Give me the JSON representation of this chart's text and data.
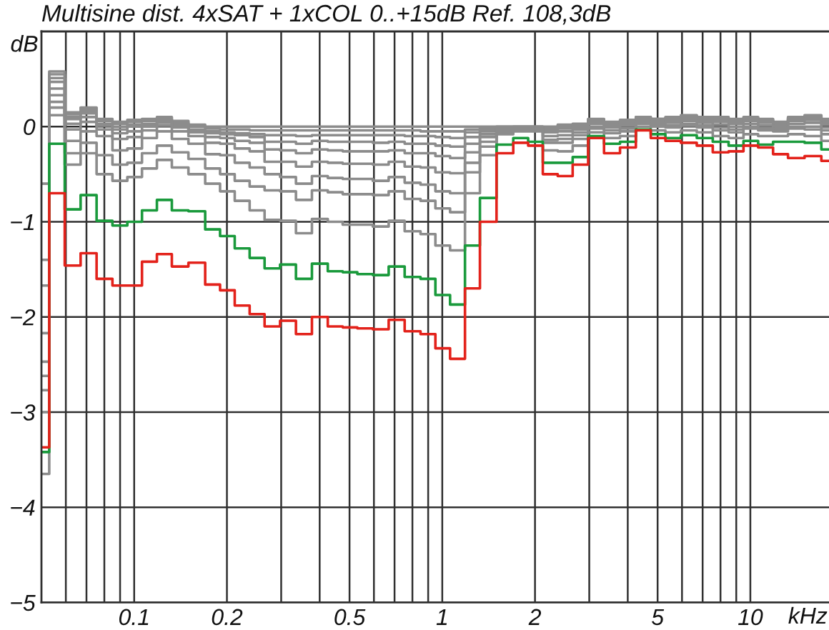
{
  "chart_data": {
    "type": "step",
    "title": "Multisine dist. 4xSAT + 1xCOL 0..+15dB Ref. 108,3dB",
    "xlabel": "kHz",
    "ylabel": "dB",
    "log": "x",
    "grid": true,
    "xlim": [
      0.05,
      18
    ],
    "ylim": [
      -5,
      1
    ],
    "xticks": [
      {
        "value": 0.06,
        "label": null
      },
      {
        "value": 0.07,
        "label": null
      },
      {
        "value": 0.08,
        "label": null
      },
      {
        "value": 0.09,
        "label": null
      },
      0.1,
      0.2,
      {
        "value": 0.3,
        "label": null
      },
      {
        "value": 0.4,
        "label": null
      },
      0.5,
      {
        "value": 0.6,
        "label": null
      },
      {
        "value": 0.7,
        "label": null
      },
      {
        "value": 0.8,
        "label": null
      },
      {
        "value": 0.9,
        "label": null
      },
      1,
      2,
      {
        "value": 3,
        "label": null
      },
      {
        "value": 4,
        "label": null
      },
      5,
      {
        "value": 6,
        "label": null
      },
      {
        "value": 7,
        "label": null
      },
      {
        "value": 8,
        "label": null
      },
      {
        "value": 9,
        "label": null
      },
      10
    ],
    "yticks": [
      {
        "value": -5,
        "label": "−5"
      },
      {
        "value": -4,
        "label": "−4"
      },
      {
        "value": -3,
        "label": "−3"
      },
      {
        "value": -2,
        "label": "−2"
      },
      {
        "value": -1,
        "label": "−1"
      },
      0
    ],
    "x": [
      0.05,
      0.056,
      0.063,
      0.071,
      0.08,
      0.09,
      0.1,
      0.112,
      0.125,
      0.14,
      0.16,
      0.18,
      0.2,
      0.224,
      0.25,
      0.28,
      0.315,
      0.355,
      0.4,
      0.45,
      0.5,
      0.56,
      0.63,
      0.71,
      0.8,
      0.9,
      1,
      1.12,
      1.25,
      1.4,
      1.6,
      1.8,
      2,
      2.24,
      2.5,
      2.8,
      3.15,
      3.55,
      4,
      4.5,
      5,
      5.6,
      6.3,
      7.1,
      8,
      9,
      10,
      11.2,
      12.5,
      14,
      16,
      18
    ],
    "series": [
      {
        "color": "#8c8c8c",
        "values": [
          -0.6,
          0.58,
          0.15,
          0.2,
          0.08,
          0.05,
          0.07,
          0.08,
          0.1,
          0.06,
          0.02,
          0,
          0,
          0,
          0,
          0,
          0,
          0,
          0,
          0,
          0,
          0,
          0,
          0,
          0,
          0,
          0,
          0,
          0,
          0,
          0,
          0,
          0,
          0,
          0.02,
          0.03,
          0.08,
          0.05,
          0.07,
          0.1,
          0.08,
          0.1,
          0.12,
          0.1,
          0.1,
          0.08,
          0.1,
          0.08,
          0.05,
          0.1,
          0.12,
          0.08
        ]
      },
      {
        "color": "#8c8c8c",
        "values": [
          -1.4,
          0.55,
          0.13,
          0.18,
          0.06,
          0.03,
          0.05,
          0.06,
          0.08,
          0.04,
          0,
          -0.02,
          -0.03,
          -0.03,
          -0.04,
          -0.04,
          -0.04,
          -0.04,
          -0.04,
          -0.04,
          -0.04,
          -0.04,
          -0.04,
          -0.04,
          -0.04,
          -0.05,
          -0.05,
          -0.05,
          -0.03,
          -0.01,
          0,
          0,
          0,
          -0.01,
          0.01,
          0.02,
          0.07,
          0.04,
          0.06,
          0.1,
          0.08,
          0.09,
          0.11,
          0.09,
          0.09,
          0.07,
          0.09,
          0.07,
          0.04,
          0.09,
          0.11,
          0.07
        ]
      },
      {
        "color": "#8c8c8c",
        "values": [
          -1.67,
          0.51,
          0.1,
          0.16,
          0.03,
          0,
          0.02,
          0.03,
          0.06,
          0.02,
          -0.03,
          -0.05,
          -0.06,
          -0.07,
          -0.08,
          -0.09,
          -0.09,
          -0.1,
          -0.09,
          -0.09,
          -0.09,
          -0.09,
          -0.09,
          -0.09,
          -0.1,
          -0.1,
          -0.11,
          -0.12,
          -0.06,
          -0.03,
          -0.01,
          0,
          0,
          -0.02,
          -0.01,
          0.01,
          0.07,
          0.03,
          0.05,
          0.09,
          0.07,
          0.09,
          0.11,
          0.09,
          0.08,
          0.06,
          0.08,
          0.06,
          0.04,
          0.08,
          0.1,
          0.06
        ]
      },
      {
        "color": "#8c8c8c",
        "values": [
          -2.17,
          0.47,
          0.08,
          0.14,
          0.02,
          -0.03,
          0,
          0.02,
          0.05,
          0.01,
          -0.04,
          -0.07,
          -0.08,
          -0.09,
          -0.11,
          -0.16,
          -0.16,
          -0.18,
          -0.15,
          -0.16,
          -0.16,
          -0.16,
          -0.17,
          -0.16,
          -0.18,
          -0.18,
          -0.2,
          -0.21,
          -0.11,
          -0.05,
          -0.01,
          -0.01,
          -0.01,
          -0.04,
          -0.02,
          -0.01,
          0.06,
          0.02,
          0.04,
          0.08,
          0.06,
          0.07,
          0.09,
          0.07,
          0.07,
          0.05,
          0.07,
          0.05,
          0.03,
          0.07,
          0.08,
          0.04
        ]
      },
      {
        "color": "#8c8c8c",
        "values": [
          -2.47,
          0.4,
          0.03,
          0.1,
          0.01,
          -0.07,
          -0.05,
          0,
          0.04,
          -0.01,
          -0.06,
          -0.11,
          -0.12,
          -0.15,
          -0.17,
          -0.24,
          -0.25,
          -0.28,
          -0.24,
          -0.25,
          -0.26,
          -0.26,
          -0.26,
          -0.25,
          -0.28,
          -0.28,
          -0.31,
          -0.33,
          -0.18,
          -0.08,
          -0.02,
          -0.01,
          -0.01,
          -0.06,
          -0.05,
          -0.03,
          0.05,
          0.01,
          0.03,
          0.08,
          0.05,
          0.06,
          0.08,
          0.06,
          0.05,
          0.03,
          0.06,
          0.04,
          0.01,
          0.06,
          0.07,
          0.02
        ]
      },
      {
        "color": "#8c8c8c",
        "values": [
          -2.62,
          0.33,
          -0.03,
          0.05,
          -0.03,
          -0.13,
          -0.11,
          -0.04,
          0.01,
          -0.05,
          -0.1,
          -0.17,
          -0.18,
          -0.23,
          -0.26,
          -0.37,
          -0.37,
          -0.42,
          -0.37,
          -0.38,
          -0.39,
          -0.39,
          -0.4,
          -0.37,
          -0.42,
          -0.43,
          -0.48,
          -0.49,
          -0.27,
          -0.11,
          -0.03,
          -0.02,
          -0.02,
          -0.1,
          -0.09,
          -0.06,
          0.03,
          -0.01,
          0.01,
          0.06,
          0.03,
          0.04,
          0.06,
          0.04,
          0.02,
          0,
          0.03,
          0.01,
          -0.01,
          0.03,
          0.04,
          -0.01
        ]
      },
      {
        "color": "#8c8c8c",
        "values": [
          -2.77,
          0.26,
          -0.15,
          -0.05,
          -0.1,
          -0.25,
          -0.23,
          -0.12,
          -0.05,
          -0.13,
          -0.18,
          -0.29,
          -0.3,
          -0.38,
          -0.43,
          -0.5,
          -0.53,
          -0.6,
          -0.52,
          -0.54,
          -0.55,
          -0.55,
          -0.57,
          -0.53,
          -0.59,
          -0.61,
          -0.68,
          -0.7,
          -0.38,
          -0.16,
          -0.04,
          -0.03,
          -0.03,
          -0.14,
          -0.13,
          -0.09,
          0,
          -0.04,
          -0.02,
          0.05,
          0.02,
          0.01,
          0.03,
          0.01,
          -0.01,
          -0.03,
          0,
          -0.02,
          -0.03,
          0,
          0,
          -0.04
        ]
      },
      {
        "color": "#8c8c8c",
        "values": [
          -3.0,
          0.2,
          -0.28,
          -0.17,
          -0.3,
          -0.4,
          -0.38,
          -0.28,
          -0.2,
          -0.27,
          -0.34,
          -0.44,
          -0.5,
          -0.57,
          -0.63,
          -0.67,
          -0.68,
          -0.77,
          -0.67,
          -0.69,
          -0.71,
          -0.71,
          -0.72,
          -0.68,
          -0.76,
          -0.78,
          -0.86,
          -0.9,
          -0.48,
          -0.21,
          -0.06,
          -0.03,
          -0.03,
          -0.17,
          -0.17,
          -0.13,
          -0.02,
          -0.07,
          -0.05,
          0.03,
          0,
          -0.01,
          0.01,
          -0.01,
          -0.04,
          -0.06,
          -0.02,
          -0.04,
          -0.05,
          -0.02,
          -0.03,
          -0.08
        ]
      },
      {
        "color": "#8c8c8c",
        "values": [
          -3.65,
          0.12,
          -0.4,
          -0.28,
          -0.5,
          -0.57,
          -0.53,
          -0.44,
          -0.35,
          -0.43,
          -0.5,
          -0.6,
          -0.68,
          -0.78,
          -0.88,
          -0.98,
          -0.99,
          -1.12,
          -0.97,
          -1.0,
          -1.03,
          -1.03,
          -1.05,
          -0.99,
          -1.1,
          -1.13,
          -1.25,
          -1.3,
          -0.7,
          -0.3,
          -0.08,
          -0.05,
          -0.05,
          -0.25,
          -0.26,
          -0.2,
          -0.06,
          -0.12,
          -0.1,
          0,
          -0.04,
          -0.06,
          -0.04,
          -0.06,
          -0.1,
          -0.12,
          -0.08,
          -0.1,
          -0.1,
          -0.08,
          -0.1,
          -0.15
        ]
      },
      {
        "color": "#1a9a3c",
        "values": [
          -3.42,
          -0.18,
          -0.87,
          -0.72,
          -0.99,
          -1.04,
          -1.0,
          -0.88,
          -0.77,
          -0.88,
          -0.89,
          -1.08,
          -1.15,
          -1.28,
          -1.38,
          -1.49,
          -1.45,
          -1.6,
          -1.44,
          -1.52,
          -1.53,
          -1.55,
          -1.56,
          -1.47,
          -1.58,
          -1.6,
          -1.77,
          -1.87,
          -1.25,
          -0.75,
          -0.19,
          -0.12,
          -0.16,
          -0.38,
          -0.38,
          -0.32,
          -0.1,
          -0.18,
          -0.16,
          -0.03,
          -0.08,
          -0.12,
          -0.09,
          -0.12,
          -0.16,
          -0.2,
          -0.15,
          -0.19,
          -0.16,
          -0.16,
          -0.17,
          -0.24
        ]
      },
      {
        "color": "#e3221b",
        "values": [
          -3.37,
          -0.7,
          -1.46,
          -1.33,
          -1.6,
          -1.67,
          -1.67,
          -1.42,
          -1.34,
          -1.47,
          -1.43,
          -1.66,
          -1.72,
          -1.88,
          -1.97,
          -2.1,
          -2.04,
          -2.18,
          -2.0,
          -2.1,
          -2.11,
          -2.12,
          -2.13,
          -2.03,
          -2.15,
          -2.18,
          -2.33,
          -2.44,
          -1.7,
          -1.0,
          -0.28,
          -0.17,
          -0.2,
          -0.5,
          -0.52,
          -0.4,
          -0.12,
          -0.28,
          -0.22,
          -0.04,
          -0.12,
          -0.15,
          -0.17,
          -0.2,
          -0.27,
          -0.26,
          -0.2,
          -0.22,
          -0.29,
          -0.33,
          -0.31,
          -0.36
        ]
      }
    ]
  }
}
